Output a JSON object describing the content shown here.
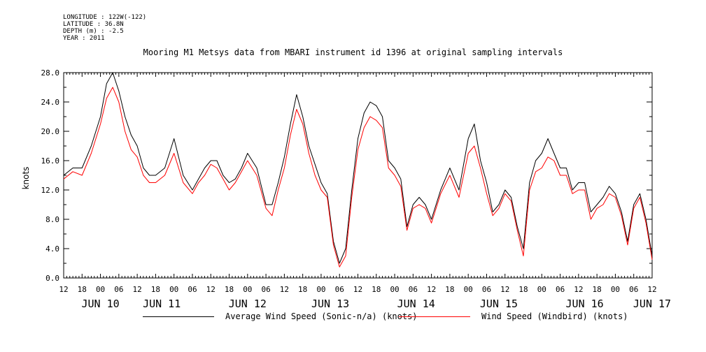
{
  "header": {
    "meta_lines": [
      "LONGITUDE : 122W(-122)",
      "LATITUDE : 36.8N",
      "DEPTH (m) : -2.5",
      "YEAR : 2011"
    ],
    "title": "Mooring M1 Metsys data from MBARI instrument id 1396 at original sampling intervals"
  },
  "colors": {
    "black_series": "#000000",
    "red_series": "#ff0000",
    "axis": "#000000"
  },
  "chart_data": {
    "type": "line",
    "title": "Mooring M1 Metsys data from MBARI instrument id 1396 at original sampling intervals",
    "ylabel": "knots",
    "xlabel": "",
    "x_unit": "hours since JUN 09 12:00 (2011)",
    "xlim": [
      0,
      192
    ],
    "ylim": [
      0,
      28
    ],
    "y_ticks": [
      "0.0",
      "4.0",
      "8.0",
      "12.0",
      "16.0",
      "20.0",
      "24.0",
      "28.0"
    ],
    "y_tick_values": [
      0,
      4,
      8,
      12,
      16,
      20,
      24,
      28
    ],
    "x_hour_labels": [
      "12",
      "18",
      "00",
      "06",
      "12",
      "18",
      "00",
      "06",
      "12",
      "18",
      "00",
      "06",
      "12",
      "18",
      "00",
      "06",
      "12",
      "18",
      "00",
      "06",
      "12",
      "18",
      "00",
      "06",
      "12",
      "18",
      "00",
      "06",
      "12",
      "18",
      "00",
      "06",
      "12"
    ],
    "x_day_labels": [
      "JUN 10",
      "JUN 11",
      "JUN 12",
      "JUN 13",
      "JUN 14",
      "JUN 15",
      "JUN 16",
      "JUN 17"
    ],
    "x_day_label_hours": [
      12,
      32,
      60,
      87,
      115,
      142,
      170,
      192
    ],
    "grid": false,
    "legend_position": "bottom",
    "series": [
      {
        "name": "Average Wind Speed (Sonic-n/a) (knots)",
        "color": "#000000",
        "x": [
          0,
          3,
          6,
          9,
          12,
          14,
          16,
          18,
          20,
          22,
          24,
          26,
          28,
          30,
          33,
          36,
          39,
          42,
          44,
          46,
          48,
          50,
          52,
          54,
          56,
          58,
          60,
          63,
          66,
          68,
          70,
          72,
          74,
          76,
          78,
          80,
          82,
          84,
          86,
          88,
          90,
          92,
          94,
          96,
          98,
          100,
          102,
          104,
          106,
          108,
          110,
          112,
          114,
          116,
          118,
          120,
          123,
          126,
          129,
          132,
          134,
          136,
          138,
          140,
          142,
          144,
          146,
          148,
          150,
          152,
          154,
          156,
          158,
          160,
          162,
          164,
          166,
          168,
          170,
          172,
          174,
          176,
          178,
          180,
          182,
          184,
          186,
          188,
          190,
          192
        ],
        "y": [
          14,
          15,
          15,
          18,
          22,
          26.5,
          28,
          25.5,
          22,
          19.5,
          18,
          15,
          14,
          14,
          15,
          19,
          14,
          12,
          13.5,
          15,
          16,
          16,
          14,
          13,
          13.5,
          15,
          17,
          15,
          10,
          10,
          13,
          16.5,
          21,
          25,
          22,
          18,
          15.5,
          13,
          11.5,
          5,
          2,
          4,
          12,
          19,
          22.5,
          24,
          23.5,
          22,
          16,
          15,
          13.5,
          7,
          10,
          11,
          10,
          8,
          12,
          15,
          12,
          19,
          21,
          16,
          13,
          9,
          10,
          12,
          11,
          7,
          4,
          13,
          16,
          17,
          19,
          17,
          15,
          15,
          12,
          13,
          13,
          9,
          10,
          11,
          12.5,
          11.5,
          9,
          5,
          10,
          11.5,
          8,
          3
        ]
      },
      {
        "name": "Wind Speed (Windbird) (knots)",
        "color": "#ff0000",
        "x": [
          0,
          3,
          6,
          9,
          12,
          14,
          16,
          18,
          20,
          22,
          24,
          26,
          28,
          30,
          33,
          36,
          39,
          42,
          44,
          46,
          48,
          50,
          52,
          54,
          56,
          58,
          60,
          63,
          66,
          68,
          70,
          72,
          74,
          76,
          78,
          80,
          82,
          84,
          86,
          88,
          90,
          92,
          94,
          96,
          98,
          100,
          102,
          104,
          106,
          108,
          110,
          112,
          114,
          116,
          118,
          120,
          123,
          126,
          129,
          132,
          134,
          136,
          138,
          140,
          142,
          144,
          146,
          148,
          150,
          152,
          154,
          156,
          158,
          160,
          162,
          164,
          166,
          168,
          170,
          172,
          174,
          176,
          178,
          180,
          182,
          184,
          186,
          188,
          190,
          192
        ],
        "y": [
          13.5,
          14.5,
          14,
          17,
          21,
          24.5,
          26,
          24,
          20,
          17.5,
          16.5,
          14,
          13,
          13,
          14,
          17,
          13,
          11.5,
          13,
          14,
          15.5,
          15,
          13.5,
          12,
          13,
          14.5,
          16,
          14,
          9.5,
          8.5,
          12,
          15,
          19.5,
          23,
          21,
          17,
          14,
          12,
          11,
          4.5,
          1.5,
          3,
          11,
          17.5,
          20.5,
          22,
          21.5,
          20.5,
          15,
          14,
          12.5,
          6.5,
          9.5,
          10,
          9.5,
          7.5,
          11.5,
          14,
          11,
          17,
          18,
          15,
          11.5,
          8.5,
          9.5,
          11.5,
          10.5,
          6.5,
          3,
          12,
          14.5,
          15,
          16.5,
          16,
          14,
          14,
          11.5,
          12,
          12,
          8,
          9.5,
          10,
          11.5,
          11,
          8.5,
          4.5,
          9.5,
          11,
          7.5,
          2.5
        ]
      }
    ]
  },
  "legend": {
    "black_label": "Average Wind Speed (Sonic-n/a) (knots)",
    "red_label": "Wind Speed (Windbird) (knots)"
  }
}
